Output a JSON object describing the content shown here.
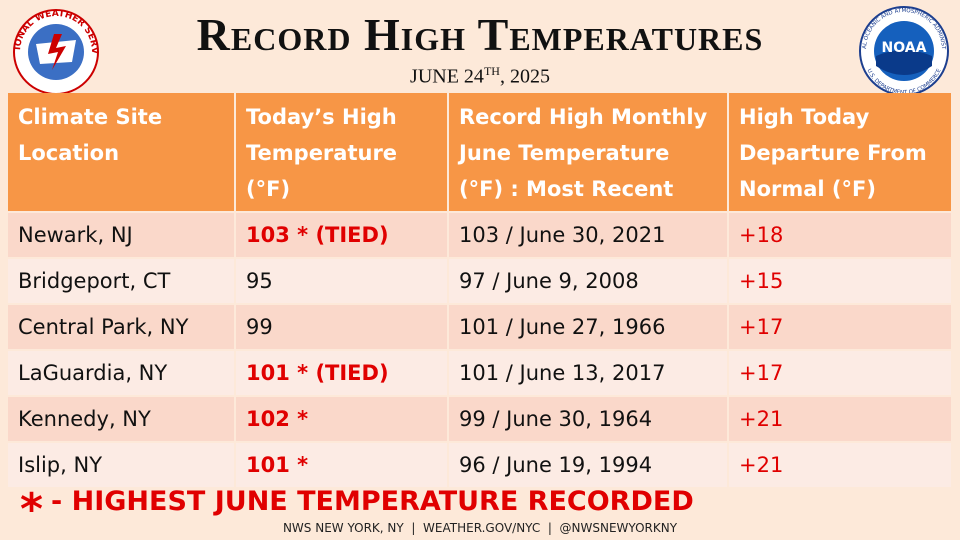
{
  "header": {
    "title": "Record High Temperatures",
    "date": {
      "main": "JUNE 24",
      "sup": "TH",
      "rest": ", 2025"
    },
    "nws_logo": "NATIONAL WEATHER SERVICE",
    "noaa_logo": {
      "name": "NOAA",
      "ring_top": "NATIONAL OCEANIC AND ATMOSPHERIC ADMINISTRATION",
      "ring_bottom": "U.S. DEPARTMENT OF COMMERCE"
    }
  },
  "table": {
    "columns": [
      [
        "Climate Site",
        "Location"
      ],
      [
        "Today’s High",
        "Temperature",
        "(°F)"
      ],
      [
        "Record High Monthly",
        "June Temperature",
        "(°F) : Most Recent"
      ],
      [
        "High Today",
        "Departure From",
        "Normal (°F)"
      ]
    ],
    "rows": [
      [
        "Newark, NJ",
        "103 * (TIED)",
        "103 / June 30, 2021",
        "+18"
      ],
      [
        "Bridgeport, CT",
        "95",
        "97 / June 9, 2008",
        "+15"
      ],
      [
        "Central Park, NY",
        "99",
        "101 / June 27, 1966",
        "+17"
      ],
      [
        "LaGuardia, NY",
        "101 * (TIED)",
        "101 / June 13, 2017",
        "+17"
      ],
      [
        "Kennedy, NY",
        "102 *",
        "99 / June 30, 1964",
        "+21"
      ],
      [
        "Islip, NY",
        "101 *",
        "96 / June 19, 1994",
        "+21"
      ]
    ]
  },
  "note": {
    "symbol": "*",
    "text": "- HIGHEST JUNE TEMPERATURE RECORDED"
  },
  "footer": "NWS NEW YORK, NY  |  WEATHER.GOV/NYC  |  @NWSNEWYORKNY"
}
